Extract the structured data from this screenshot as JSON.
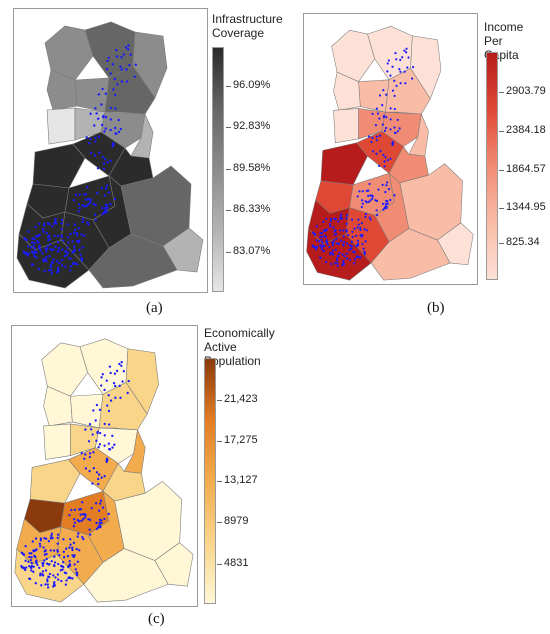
{
  "panels": [
    {
      "id": "a",
      "caption": "(a)",
      "legend_title": "Infrastructure\nCoverage",
      "ticks": [
        "96.09%",
        "92.83%",
        "89.58%",
        "86.33%",
        "83.07%"
      ],
      "colors": [
        "#2b2b2b",
        "#666666",
        "#8c8c8c",
        "#b3b3b3",
        "#e6e6e6"
      ]
    },
    {
      "id": "b",
      "caption": "(b)",
      "legend_title": "Income Per\nCapita",
      "ticks": [
        "2903.79",
        "2384.18",
        "1864.57",
        "1344.95",
        "825.34"
      ],
      "colors": [
        "#b71c1c",
        "#e04836",
        "#f08c74",
        "#f9bca7",
        "#fde1d6"
      ]
    },
    {
      "id": "c",
      "caption": "(c)",
      "legend_title": "Economically\nActive Population",
      "ticks": [
        "21,423",
        "17,275",
        "13,127",
        "8979",
        "4831"
      ],
      "colors": [
        "#8a3a0c",
        "#e37d24",
        "#f2ac4e",
        "#f9d58a",
        "#fff7d6"
      ]
    }
  ],
  "point_color": "#1a1aff"
}
